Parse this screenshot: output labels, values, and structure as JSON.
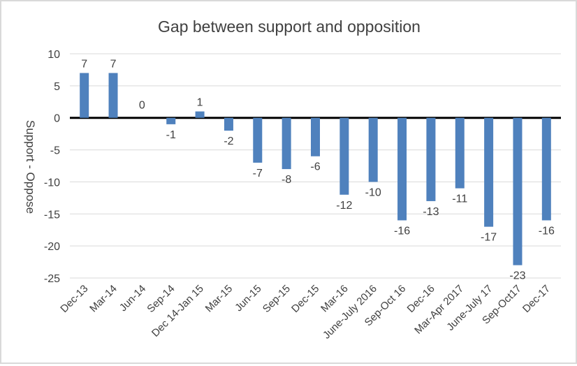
{
  "chart_data": {
    "type": "bar",
    "title": "Gap between support and opposition",
    "xlabel": "",
    "ylabel": "Support - Oppose",
    "ylim": [
      -25,
      10
    ],
    "yticks": [
      10,
      5,
      0,
      -5,
      -10,
      -15,
      -20,
      -25
    ],
    "grid": true,
    "legend": "none",
    "bar_color": "#4f81bd",
    "categories": [
      "Dec-13",
      "Mar-14",
      "Jun-14",
      "Sep-14",
      "Dec 14-Jan 15",
      "Mar-15",
      "Jun-15",
      "Sep-15",
      "Dec-15",
      "Mar-16",
      "June-July 2016",
      "Sep-Oct 16",
      "Dec-16",
      "Mar-Apr 2017",
      "June-July 17",
      "Sep-Oct17",
      "Dec-17"
    ],
    "values": [
      7,
      7,
      0,
      -1,
      1,
      -2,
      -7,
      -8,
      -6,
      -12,
      -10,
      -16,
      -13,
      -11,
      -17,
      -23,
      -16
    ]
  }
}
